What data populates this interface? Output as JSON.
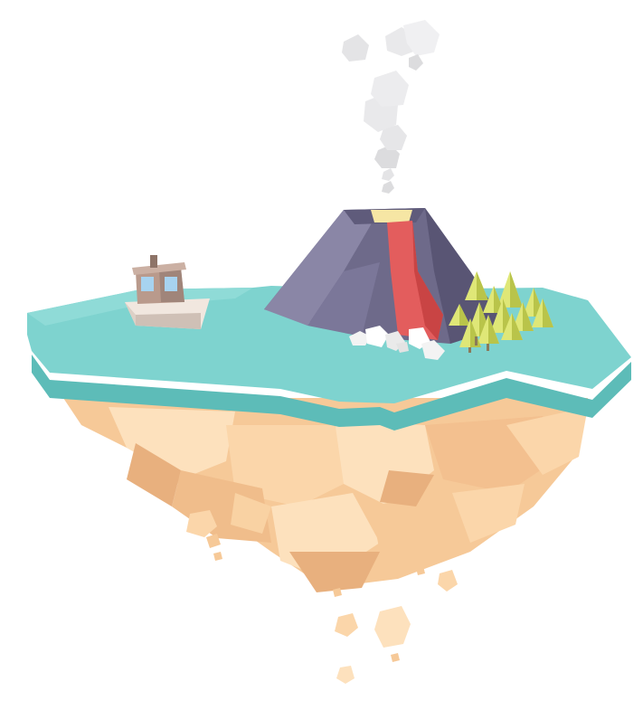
{
  "scene": {
    "subject": "floating-island",
    "background_color": "#ffffff",
    "colors": {
      "sea_top": "#7ed3cf",
      "sea_side": "#5dbcb8",
      "rock_light": "#fde1bd",
      "rock_mid": "#f6c998",
      "rock_dark": "#e8b07e",
      "volcano_light": "#8a86a6",
      "volcano_mid": "#6e6a8a",
      "volcano_dark": "#595574",
      "lava": "#e35d5d",
      "lava_dark": "#c94444",
      "crater_glow": "#f6e6a4",
      "smoke": "#dcdcde",
      "pebbles": "#f3f3f3",
      "tree_light": "#dfe777",
      "tree_dark": "#b9c44a",
      "trunk": "#8a7a5a",
      "boat_hull": "#f1e7df",
      "boat_hull_shade": "#cfc0b6",
      "boat_cabin": "#b99a8c",
      "boat_window": "#a7d3f0"
    }
  }
}
